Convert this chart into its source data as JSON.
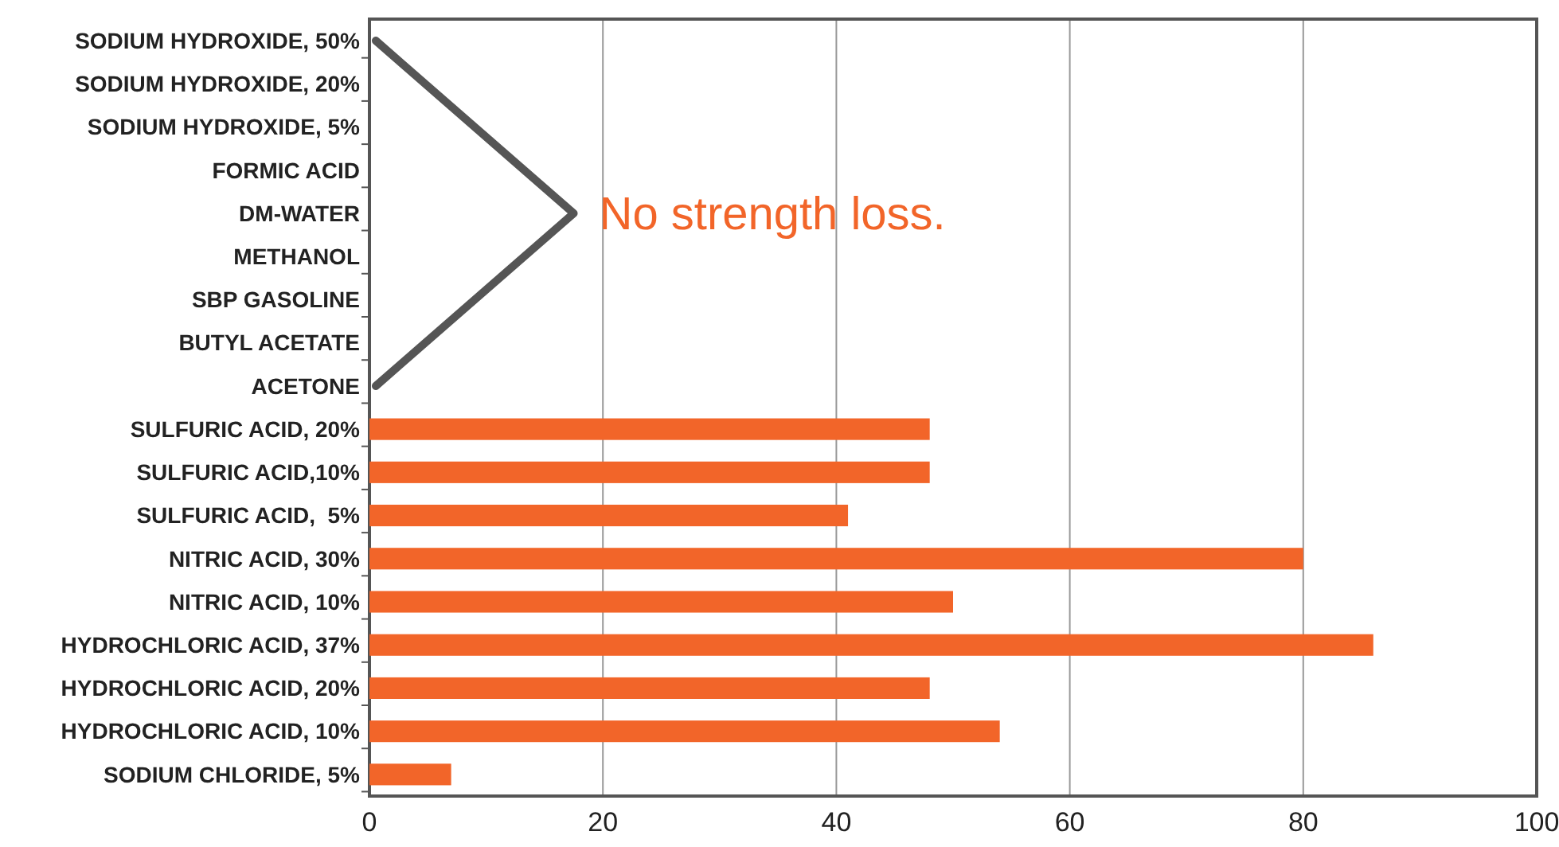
{
  "chart_data": {
    "type": "bar",
    "orientation": "horizontal",
    "categories": [
      "SODIUM HYDROXIDE, 50%",
      "SODIUM HYDROXIDE, 20%",
      "SODIUM HYDROXIDE, 5%",
      "FORMIC ACID",
      "DM-WATER",
      "METHANOL",
      "SBP GASOLINE",
      "BUTYL ACETATE",
      "ACETONE",
      "SULFURIC ACID, 20%",
      "SULFURIC ACID,10%",
      "SULFURIC ACID,  5%",
      "NITRIC ACID, 30%",
      "NITRIC ACID, 10%",
      "HYDROCHLORIC ACID, 37%",
      "HYDROCHLORIC ACID, 20%",
      "HYDROCHLORIC ACID, 10%",
      "SODIUM CHLORIDE, 5%"
    ],
    "values": [
      null,
      null,
      null,
      null,
      null,
      null,
      null,
      null,
      null,
      48,
      48,
      41,
      80,
      50,
      86,
      48,
      54,
      7
    ],
    "color": "#f26529",
    "xlim": [
      0,
      100
    ],
    "xticks": [
      0,
      20,
      40,
      60,
      80,
      100
    ],
    "grid": "x",
    "annotations": [
      "No strength loss."
    ]
  }
}
